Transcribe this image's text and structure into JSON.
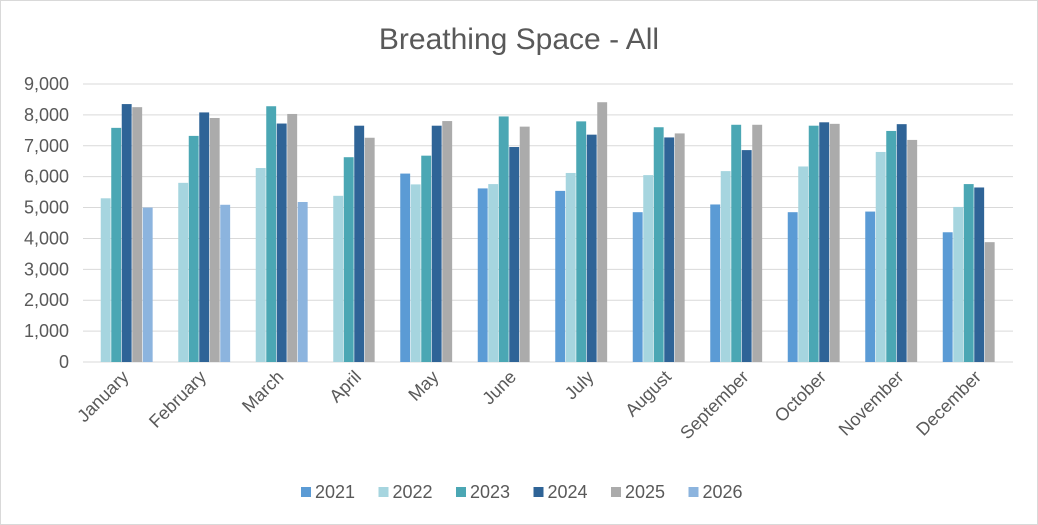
{
  "chart_data": {
    "type": "bar",
    "title": "Breathing Space - All",
    "xlabel": "",
    "ylabel": "",
    "ylim": [
      0,
      9000
    ],
    "yticks": [
      0,
      1000,
      2000,
      3000,
      4000,
      5000,
      6000,
      7000,
      8000,
      9000
    ],
    "ytick_labels": [
      "0",
      "1,000",
      "2,000",
      "3,000",
      "4,000",
      "5,000",
      "6,000",
      "7,000",
      "8,000",
      "9,000"
    ],
    "grid": true,
    "legend_position": "bottom",
    "categories": [
      "January",
      "February",
      "March",
      "April",
      "May",
      "June",
      "July",
      "August",
      "September",
      "October",
      "November",
      "December"
    ],
    "series": [
      {
        "name": "2021",
        "color": "#5b9bd5",
        "values": [
          null,
          null,
          null,
          null,
          6100,
          5620,
          5540,
          4850,
          5100,
          4850,
          4870,
          4200
        ]
      },
      {
        "name": "2022",
        "color": "#a6d5df",
        "values": [
          5300,
          5800,
          6280,
          5380,
          5750,
          5760,
          6120,
          6050,
          6180,
          6330,
          6800,
          5020
        ]
      },
      {
        "name": "2023",
        "color": "#4ba7b4",
        "values": [
          7580,
          7320,
          8280,
          6630,
          6680,
          7950,
          7790,
          7600,
          7680,
          7650,
          7480,
          5760
        ]
      },
      {
        "name": "2024",
        "color": "#2f6497",
        "values": [
          8350,
          8080,
          7720,
          7650,
          7650,
          6960,
          7360,
          7270,
          6860,
          7760,
          7700,
          5650
        ]
      },
      {
        "name": "2025",
        "color": "#ababab",
        "values": [
          8250,
          7900,
          8030,
          7260,
          7800,
          7620,
          8410,
          7400,
          7680,
          7710,
          7190,
          3880
        ]
      },
      {
        "name": "2026",
        "color": "#8cb4de",
        "values": [
          5000,
          5090,
          5180,
          null,
          null,
          null,
          null,
          null,
          null,
          null,
          null,
          null
        ]
      }
    ]
  }
}
